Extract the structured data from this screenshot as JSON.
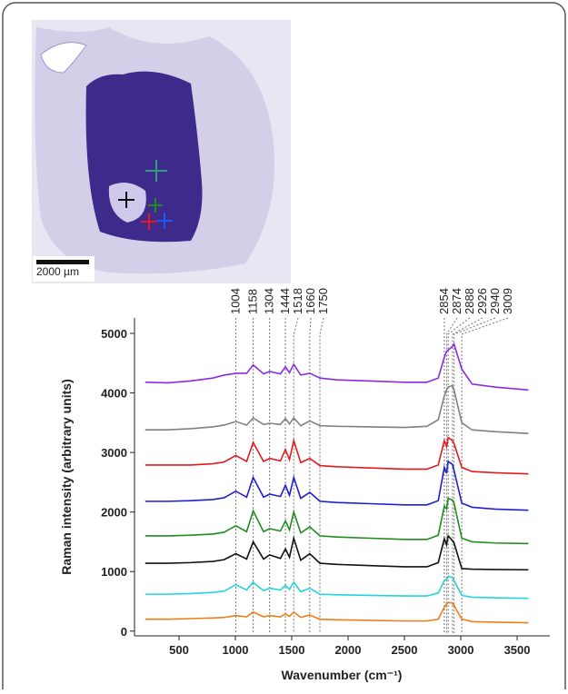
{
  "scale_bar": "2000 µm",
  "chart_data": {
    "type": "line",
    "x_label": "Wavenumber (cm⁻¹)",
    "y_label": "Raman intensity (arbitrary units)",
    "peaks": [
      1004,
      1158,
      1304,
      1444,
      1518,
      1660,
      1750,
      2854,
      2874,
      2888,
      2926,
      2940,
      3009
    ],
    "x": [
      200,
      400,
      600,
      800,
      900,
      1004,
      1100,
      1158,
      1250,
      1304,
      1400,
      1444,
      1480,
      1518,
      1580,
      1660,
      1750,
      1900,
      2200,
      2500,
      2700,
      2800,
      2854,
      2874,
      2888,
      2926,
      2940,
      3009,
      3100,
      3300,
      3600
    ],
    "xlim": [
      105,
      3790
    ],
    "xticks": [
      500,
      1000,
      1500,
      2000,
      2500,
      3000,
      3500
    ],
    "ylim": [
      -80,
      5260
    ],
    "yticks": [
      0,
      1000,
      2000,
      3000,
      4000,
      5000
    ],
    "series": [
      {
        "color": "#8a2be2",
        "values": [
          4180,
          4170,
          4200,
          4250,
          4300,
          4330,
          4330,
          4470,
          4320,
          4360,
          4320,
          4440,
          4340,
          4480,
          4300,
          4330,
          4250,
          4220,
          4200,
          4180,
          4180,
          4250,
          4600,
          4700,
          4720,
          4780,
          4820,
          4400,
          4150,
          4100,
          4050
        ]
      },
      {
        "color": "#808080",
        "values": [
          3380,
          3380,
          3400,
          3430,
          3460,
          3520,
          3460,
          3580,
          3470,
          3490,
          3470,
          3570,
          3480,
          3580,
          3450,
          3530,
          3450,
          3440,
          3430,
          3420,
          3440,
          3550,
          3950,
          4050,
          4100,
          4120,
          4050,
          3500,
          3380,
          3350,
          3320
        ]
      },
      {
        "color": "#e31a1c",
        "values": [
          2790,
          2790,
          2790,
          2810,
          2840,
          2950,
          2850,
          3170,
          2850,
          2900,
          2860,
          3050,
          2880,
          3200,
          2830,
          2900,
          2780,
          2760,
          2740,
          2720,
          2720,
          2790,
          3200,
          3100,
          3250,
          3200,
          3150,
          2750,
          2680,
          2660,
          2640
        ]
      },
      {
        "color": "#1f1fd0",
        "values": [
          2180,
          2180,
          2190,
          2210,
          2240,
          2350,
          2250,
          2580,
          2250,
          2300,
          2260,
          2450,
          2280,
          2580,
          2230,
          2330,
          2180,
          2160,
          2140,
          2120,
          2120,
          2190,
          2750,
          2650,
          2850,
          2800,
          2700,
          2150,
          2080,
          2050,
          2030
        ]
      },
      {
        "color": "#1e8c1e",
        "values": [
          1600,
          1600,
          1610,
          1630,
          1660,
          1770,
          1670,
          2020,
          1670,
          1720,
          1680,
          1850,
          1700,
          2000,
          1650,
          1750,
          1600,
          1580,
          1560,
          1540,
          1540,
          1610,
          2100,
          2050,
          2230,
          2200,
          2150,
          1560,
          1500,
          1480,
          1470
        ]
      },
      {
        "color": "#111111",
        "values": [
          1140,
          1140,
          1150,
          1170,
          1200,
          1300,
          1210,
          1500,
          1210,
          1280,
          1220,
          1380,
          1240,
          1560,
          1190,
          1300,
          1140,
          1120,
          1100,
          1080,
          1080,
          1150,
          1550,
          1450,
          1600,
          1520,
          1480,
          1050,
          1040,
          1035,
          1030
        ]
      },
      {
        "color": "#22d3e0",
        "values": [
          620,
          620,
          630,
          650,
          670,
          780,
          690,
          820,
          680,
          720,
          690,
          770,
          700,
          820,
          660,
          720,
          620,
          610,
          600,
          590,
          590,
          640,
          850,
          870,
          920,
          900,
          850,
          600,
          570,
          560,
          550
        ]
      },
      {
        "color": "#f07d1a",
        "values": [
          200,
          200,
          210,
          220,
          230,
          260,
          240,
          320,
          240,
          260,
          240,
          290,
          250,
          320,
          230,
          270,
          200,
          190,
          180,
          170,
          170,
          200,
          400,
          450,
          480,
          470,
          430,
          200,
          160,
          150,
          140
        ]
      }
    ]
  }
}
